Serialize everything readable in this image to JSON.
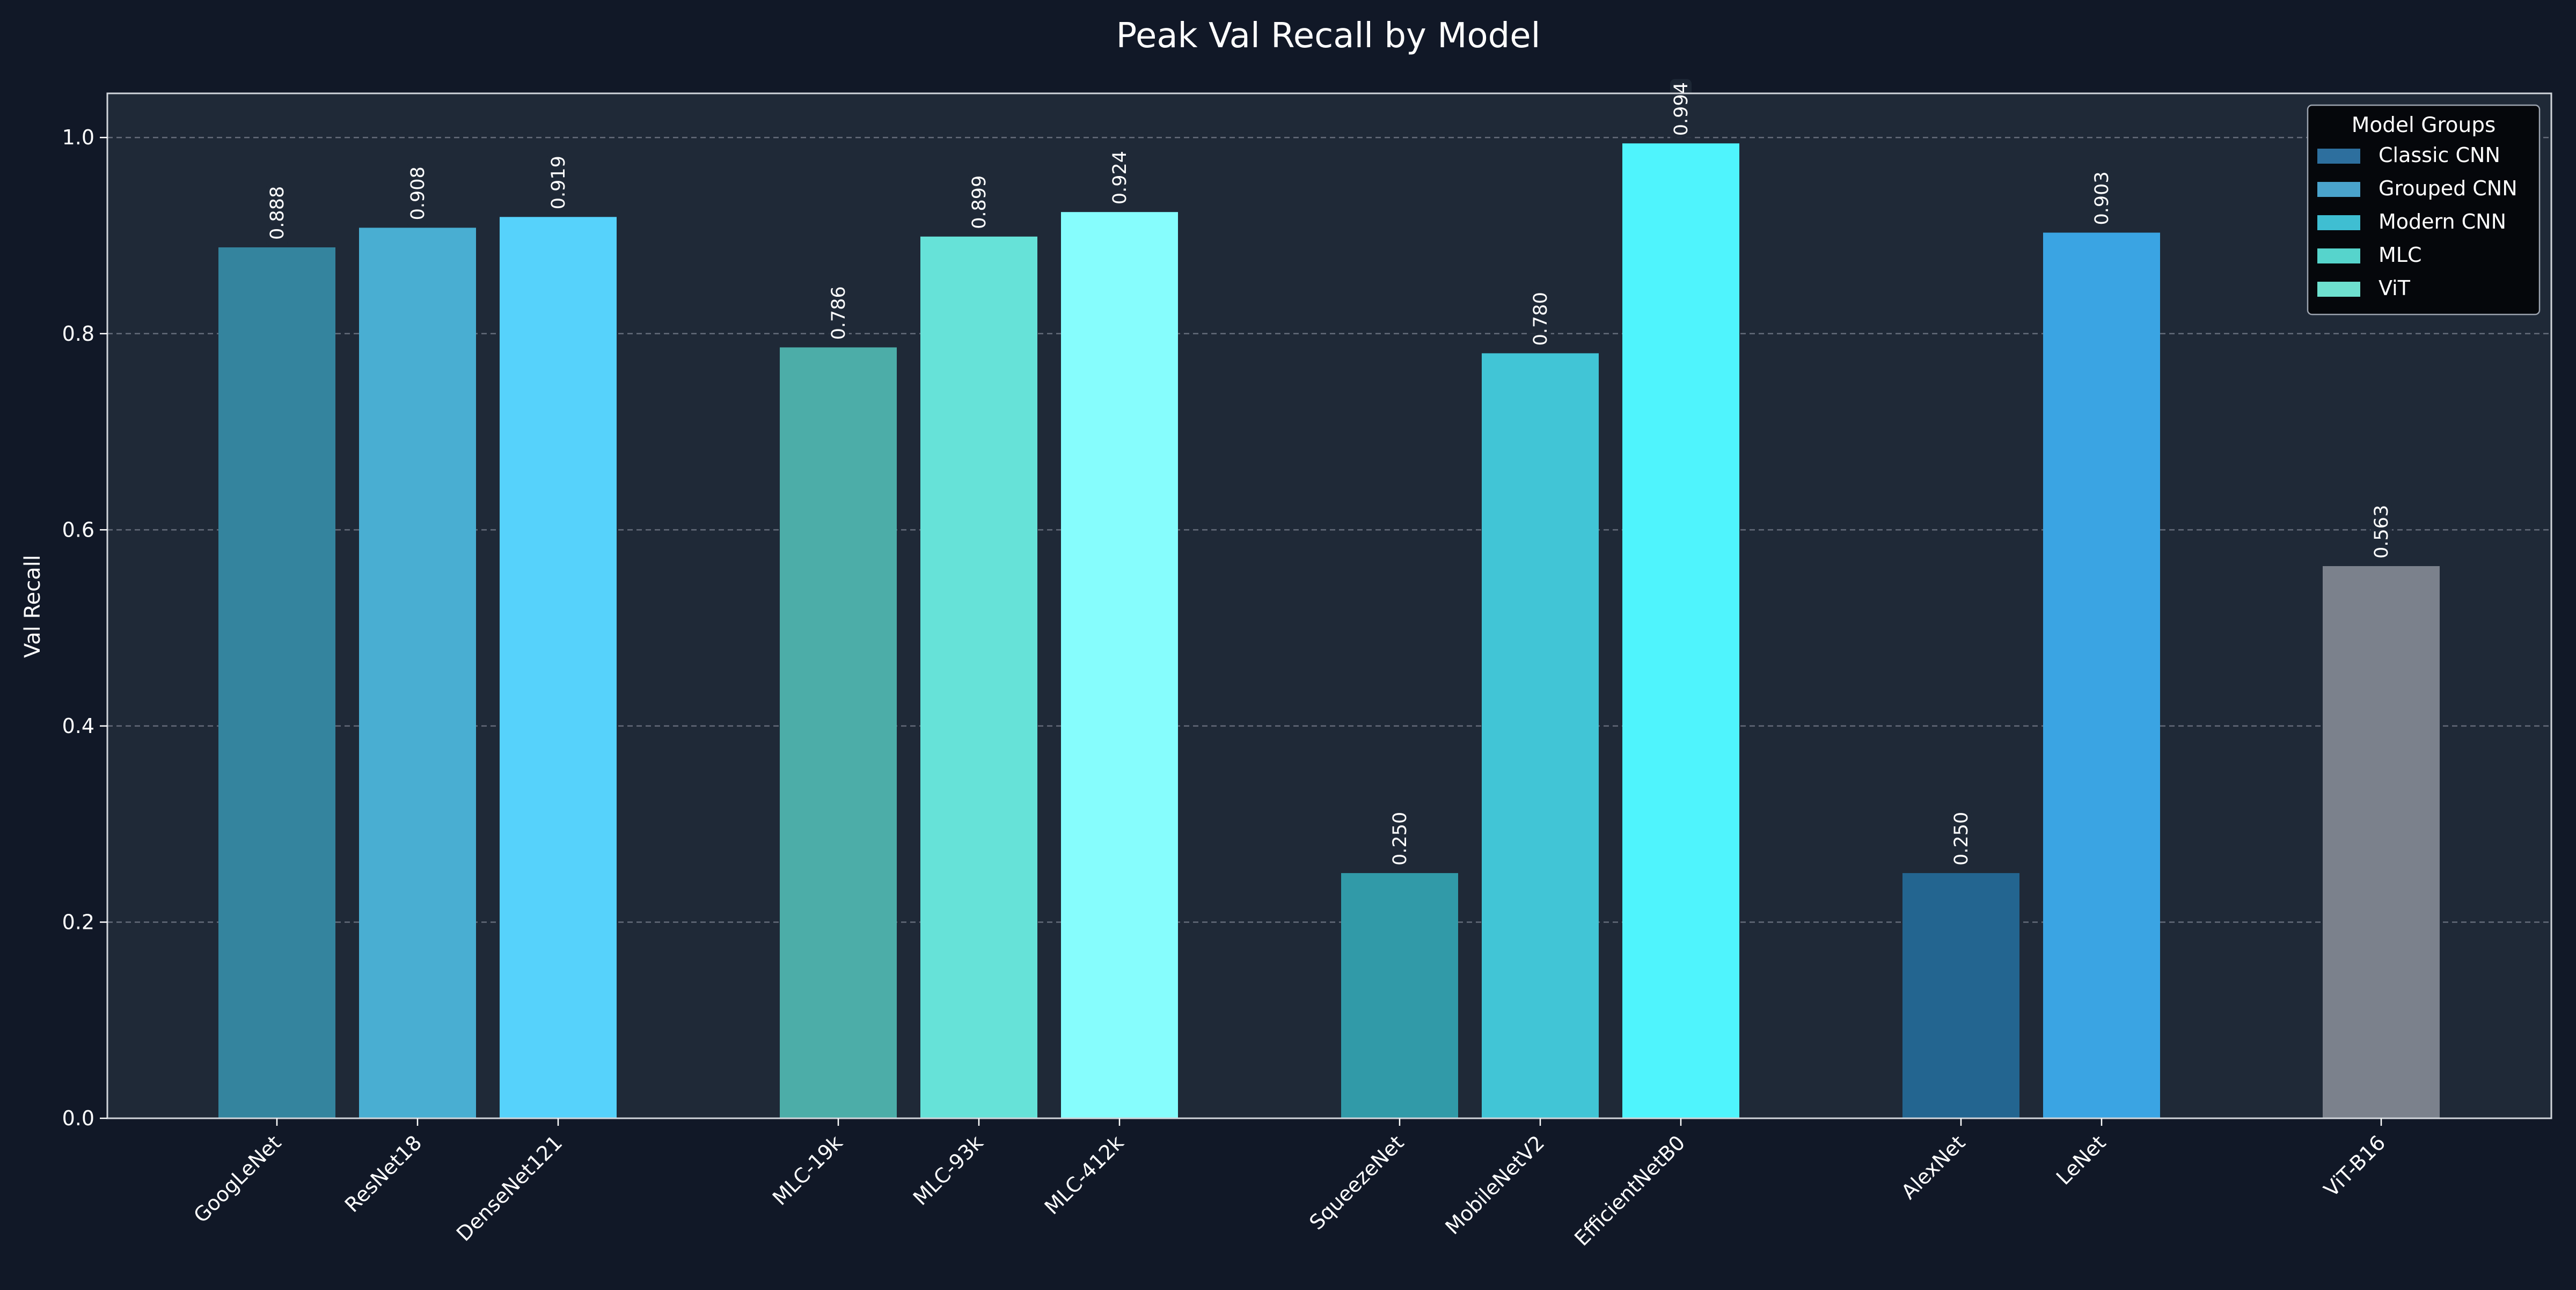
{
  "chart_data": {
    "type": "bar",
    "title": "Peak Val Recall by Model",
    "xlabel": "",
    "ylabel": "Val Recall",
    "ylim": [
      0,
      1.045
    ],
    "yticks": [
      "0.0",
      "0.2",
      "0.4",
      "0.6",
      "0.8",
      "1.0"
    ],
    "ytick_values": [
      0,
      0.2,
      0.4,
      0.6,
      0.8,
      1.0
    ],
    "grid": "y-dashed",
    "legend": {
      "title": "Model Groups",
      "placement": "top-right",
      "items": [
        {
          "label": "Classic CNN",
          "color": "#2d6f9e"
        },
        {
          "label": "Grouped CNN",
          "color": "#4aa3cc"
        },
        {
          "label": "Modern CNN",
          "color": "#3fbed2"
        },
        {
          "label": "MLC",
          "color": "#56d4cc"
        },
        {
          "label": "ViT",
          "color": "#6ee0cf"
        }
      ]
    },
    "bars": [
      {
        "category": "GoogLeNet",
        "value": 0.888,
        "label": "0.888",
        "color": "#34849e"
      },
      {
        "category": "ResNet18",
        "value": 0.908,
        "label": "0.908",
        "color": "#49aed2"
      },
      {
        "category": "DenseNet121",
        "value": 0.919,
        "label": "0.919",
        "color": "#56d2fb"
      },
      {
        "category": "MLC-19k",
        "value": 0.786,
        "label": "0.786",
        "color": "#4cada8"
      },
      {
        "category": "MLC-93k",
        "value": 0.899,
        "label": "0.899",
        "color": "#66e2d8"
      },
      {
        "category": "MLC-412k",
        "value": 0.924,
        "label": "0.924",
        "color": "#86fdfd"
      },
      {
        "category": "SqueezeNet",
        "value": 0.25,
        "label": "0.250",
        "color": "#319aa8"
      },
      {
        "category": "MobileNetV2",
        "value": 0.78,
        "label": "0.780",
        "color": "#41c5d6"
      },
      {
        "category": "EfficientNetB0",
        "value": 0.994,
        "label": "0.994",
        "color": "#4ff4fd"
      },
      {
        "category": "AlexNet",
        "value": 0.25,
        "label": "0.250",
        "color": "#236590"
      },
      {
        "category": "LeNet",
        "value": 0.903,
        "label": "0.903",
        "color": "#3aa4e3"
      },
      {
        "category": "ViT-B16",
        "value": 0.563,
        "label": "0.563",
        "color": "#7b818c"
      }
    ]
  },
  "colors": {
    "page_bg": "#111827",
    "plot_bg": "#1f2937",
    "text": "#ffffff",
    "grid": "#6b7280",
    "legend_bg": "#05070b",
    "label_bg": "#1f2937"
  }
}
